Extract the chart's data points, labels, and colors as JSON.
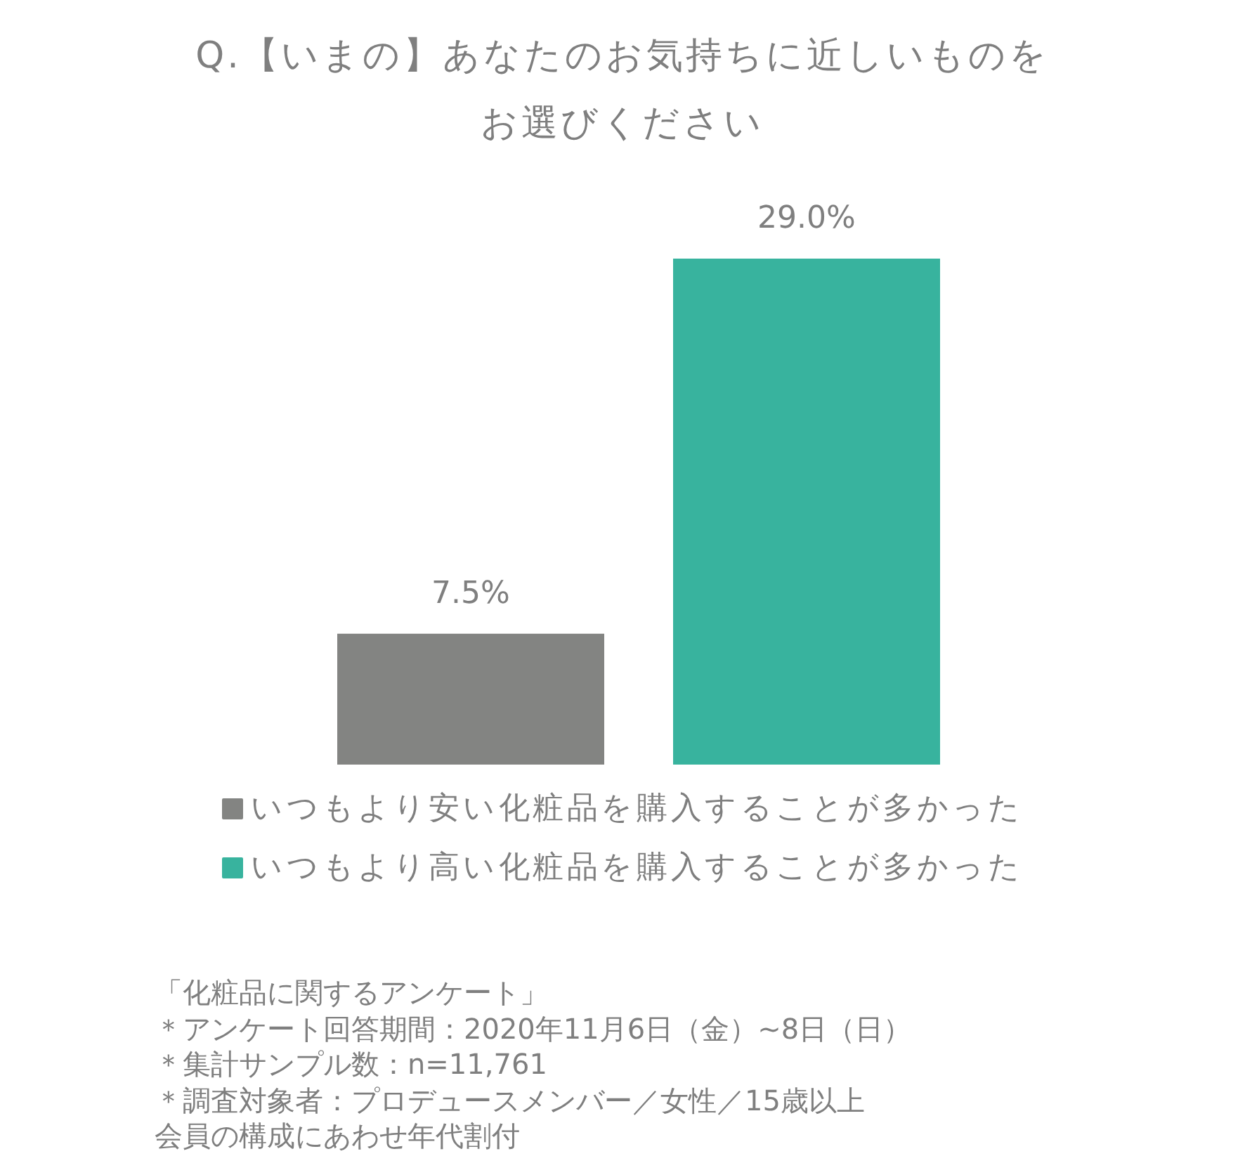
{
  "chart_data": {
    "type": "bar",
    "title": "Q.【いまの】あなたのお気持ちに近しいものをお選びください",
    "categories": [
      null
    ],
    "series": [
      {
        "name": "いつもより安い化粧品を購入することが多かった",
        "color": "#838482",
        "values": [
          7.5
        ],
        "value_labels": [
          "7.5%"
        ]
      },
      {
        "name": "いつもより高い化粧品を購入することが多かった",
        "color": "#38b39e",
        "values": [
          29.0
        ],
        "value_labels": [
          "29.0%"
        ]
      }
    ],
    "legend": "bottom",
    "annotations": [
      "「化粧品に関するアンケート」",
      "＊アンケート回答期間：2020年11月6日（金）~8日（日）",
      "＊集計サンプル数：n=11,761",
      "＊調査対象者：プロデュースメンバー／女性／15歳以上",
      "会員の構成にあわせ年代割付"
    ]
  }
}
